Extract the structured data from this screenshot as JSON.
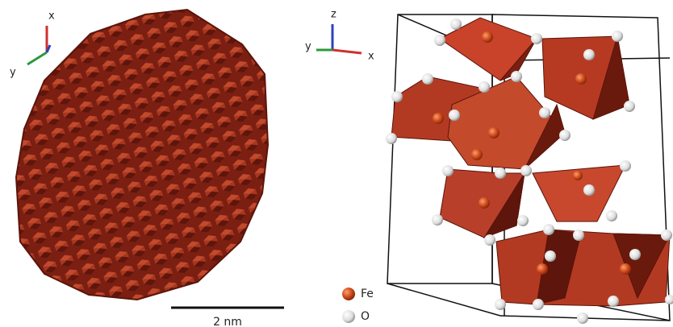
{
  "left_panel": {
    "axes": {
      "x": "x",
      "y": "y"
    },
    "scale_bar": "2 nm"
  },
  "right_panel": {
    "axes": {
      "z": "z",
      "y": "y",
      "x": "x"
    },
    "legend": [
      {
        "label": "Fe"
      },
      {
        "label": "O"
      }
    ]
  }
}
